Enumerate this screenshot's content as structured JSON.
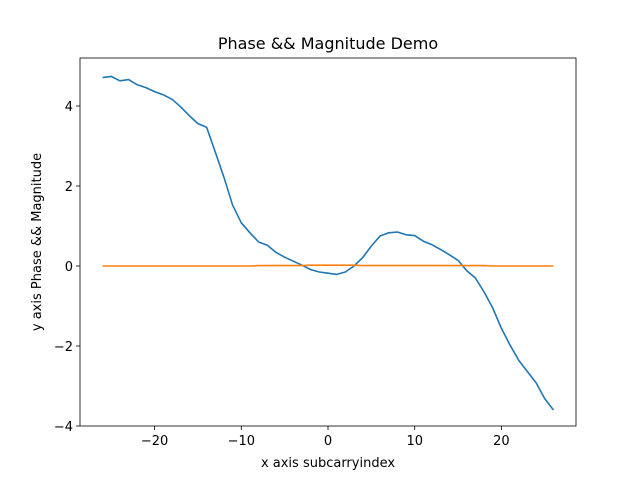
{
  "chart_data": {
    "type": "line",
    "title": "Phase && Magnitude Demo",
    "xlabel": "x axis subcarryindex",
    "ylabel": "y axis Phase && Magnitude",
    "xlim": [
      -28.6,
      28.6
    ],
    "ylim": [
      -4.0,
      5.2
    ],
    "xticks": [
      -20,
      -10,
      0,
      10,
      20
    ],
    "yticks": [
      -4,
      -2,
      0,
      2,
      4
    ],
    "xtick_labels": [
      "−20",
      "−10",
      "0",
      "10",
      "20"
    ],
    "ytick_labels": [
      "−4",
      "−2",
      "0",
      "2",
      "4"
    ],
    "grid": false,
    "series": [
      {
        "color": "#1f77b4",
        "x": [
          -26,
          -25,
          -24,
          -23,
          -22,
          -21,
          -20,
          -19,
          -18,
          -17,
          -16,
          -15,
          -14,
          -13,
          -12,
          -11,
          -10,
          -9,
          -8,
          -7,
          -6,
          -5,
          -4,
          -3,
          -2,
          -1,
          0,
          1,
          2,
          3,
          4,
          5,
          6,
          7,
          8,
          9,
          10,
          11,
          12,
          13,
          14,
          15,
          16,
          17,
          18,
          19,
          20,
          21,
          22,
          23,
          24,
          25,
          26
        ],
        "y": [
          4.71,
          4.74,
          4.63,
          4.66,
          4.53,
          4.46,
          4.36,
          4.28,
          4.17,
          3.98,
          3.76,
          3.56,
          3.47,
          2.85,
          2.22,
          1.52,
          1.08,
          0.83,
          0.6,
          0.52,
          0.34,
          0.22,
          0.12,
          0.02,
          -0.09,
          -0.15,
          -0.18,
          -0.21,
          -0.15,
          0.0,
          0.21,
          0.5,
          0.75,
          0.83,
          0.85,
          0.78,
          0.76,
          0.62,
          0.53,
          0.41,
          0.28,
          0.14,
          -0.12,
          -0.3,
          -0.65,
          -1.05,
          -1.56,
          -1.98,
          -2.36,
          -2.64,
          -2.92,
          -3.32,
          -3.6
        ]
      },
      {
        "color": "#ff7f0e",
        "x": [
          -26,
          -25,
          -24,
          -23,
          -22,
          -21,
          -20,
          -19,
          -18,
          -17,
          -16,
          -15,
          -14,
          -13,
          -12,
          -11,
          -10,
          -9,
          -8,
          -7,
          -6,
          -5,
          -4,
          -3,
          -2,
          -1,
          0,
          1,
          2,
          3,
          4,
          5,
          6,
          7,
          8,
          9,
          10,
          11,
          12,
          13,
          14,
          15,
          16,
          17,
          18,
          19,
          20,
          21,
          22,
          23,
          24,
          25,
          26
        ],
        "y": [
          0.0,
          0.0,
          0.0,
          0.0,
          0.0,
          0.0,
          0.0,
          0.0,
          0.0,
          0.0,
          0.0,
          0.0,
          0.0,
          0.0,
          0.0,
          0.0,
          0.0,
          0.0,
          0.01,
          0.01,
          0.01,
          0.01,
          0.01,
          0.01,
          0.02,
          0.02,
          0.02,
          0.02,
          0.02,
          0.02,
          0.01,
          0.01,
          0.01,
          0.01,
          0.01,
          0.01,
          0.01,
          0.01,
          0.01,
          0.01,
          0.01,
          0.01,
          0.01,
          0.01,
          0.01,
          0.0,
          0.0,
          0.0,
          0.0,
          0.0,
          0.0,
          0.0,
          0.0
        ]
      }
    ]
  }
}
